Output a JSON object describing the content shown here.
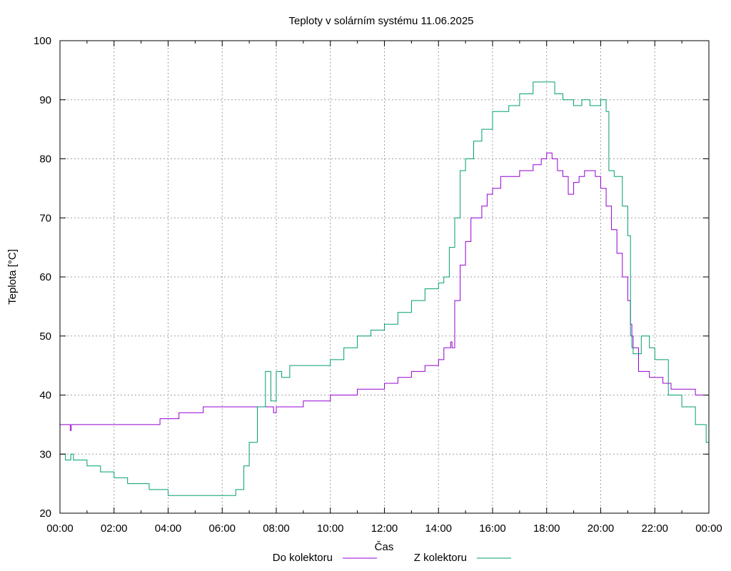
{
  "chart_data": {
    "type": "line",
    "title": "Teploty v solárním systému 11.06.2025",
    "xlabel": "Čas",
    "ylabel": "Teplota [°C]",
    "xlim": [
      0,
      24
    ],
    "ylim": [
      20,
      100
    ],
    "grid": true,
    "legend_position": "bottom-center",
    "x_ticks": [
      "00:00",
      "02:00",
      "04:00",
      "06:00",
      "08:00",
      "10:00",
      "12:00",
      "14:00",
      "16:00",
      "18:00",
      "20:00",
      "22:00",
      "00:00"
    ],
    "y_ticks": [
      20,
      30,
      40,
      50,
      60,
      70,
      80,
      90,
      100
    ],
    "series": [
      {
        "name": "Do kolektoru",
        "color": "#9400d3",
        "x": [
          0,
          0.35,
          0.38,
          0.42,
          0.5,
          3.6,
          3.7,
          4.3,
          4.4,
          5.2,
          5.3,
          7.6,
          7.9,
          8.0,
          8.6,
          9.0,
          9.5,
          10.0,
          10.5,
          11.0,
          11.5,
          12.0,
          12.5,
          13.0,
          13.5,
          14.0,
          14.2,
          14.45,
          14.5,
          14.6,
          14.8,
          15.0,
          15.2,
          15.4,
          15.6,
          15.8,
          16.0,
          16.3,
          16.5,
          17.0,
          17.5,
          17.8,
          18.0,
          18.2,
          18.4,
          18.6,
          18.8,
          19.0,
          19.2,
          19.4,
          19.6,
          19.8,
          20.0,
          20.2,
          20.4,
          20.6,
          20.8,
          21.0,
          21.1,
          21.15,
          21.2,
          21.4,
          21.8,
          22.3,
          22.6,
          23.0,
          23.5,
          23.9,
          24.0
        ],
        "y": [
          35,
          35,
          34,
          35,
          35,
          35,
          36,
          36,
          37,
          37,
          38,
          38,
          37,
          38,
          38,
          39,
          39,
          40,
          40,
          41,
          41,
          42,
          43,
          44,
          45,
          46,
          48,
          49,
          48,
          56,
          62,
          66,
          70,
          70,
          72,
          74,
          75,
          77,
          77,
          78,
          79,
          80,
          81,
          80,
          78,
          77,
          74,
          76,
          77,
          78,
          78,
          77,
          75,
          72,
          68,
          64,
          60,
          56,
          52,
          50,
          48,
          44,
          43,
          42,
          41,
          41,
          40,
          40,
          39
        ]
      },
      {
        "name": "Z kolektoru",
        "color": "#009e73",
        "x": [
          0,
          0.2,
          0.4,
          0.5,
          1.0,
          1.5,
          2.0,
          2.5,
          2.8,
          3.3,
          3.5,
          4.0,
          4.5,
          5.0,
          5.5,
          6.0,
          6.3,
          6.5,
          6.8,
          7.0,
          7.3,
          7.6,
          7.8,
          8.0,
          8.2,
          8.5,
          9.0,
          9.5,
          10.0,
          10.5,
          11.0,
          11.5,
          12.0,
          12.5,
          13.0,
          13.5,
          14.0,
          14.2,
          14.4,
          14.6,
          14.8,
          15.0,
          15.3,
          15.6,
          16.0,
          16.3,
          16.6,
          17.0,
          17.5,
          18.0,
          18.3,
          18.6,
          19.0,
          19.3,
          19.6,
          20.0,
          20.2,
          20.3,
          20.5,
          20.8,
          21.0,
          21.1,
          21.15,
          21.2,
          21.5,
          21.8,
          22.0,
          22.5,
          23.0,
          23.5,
          23.9,
          24.0
        ],
        "y": [
          30,
          29,
          30,
          29,
          28,
          27,
          26,
          25,
          25,
          24,
          24,
          23,
          23,
          23,
          23,
          23,
          23,
          24,
          28,
          32,
          38,
          44,
          39,
          44,
          43,
          45,
          45,
          45,
          46,
          48,
          50,
          51,
          52,
          54,
          56,
          58,
          59,
          60,
          65,
          70,
          78,
          80,
          83,
          85,
          88,
          88,
          89,
          91,
          93,
          93,
          91,
          90,
          89,
          90,
          89,
          90,
          88,
          78,
          77,
          72,
          67,
          50,
          48,
          47,
          50,
          48,
          46,
          40,
          38,
          35,
          32,
          31
        ]
      }
    ]
  }
}
